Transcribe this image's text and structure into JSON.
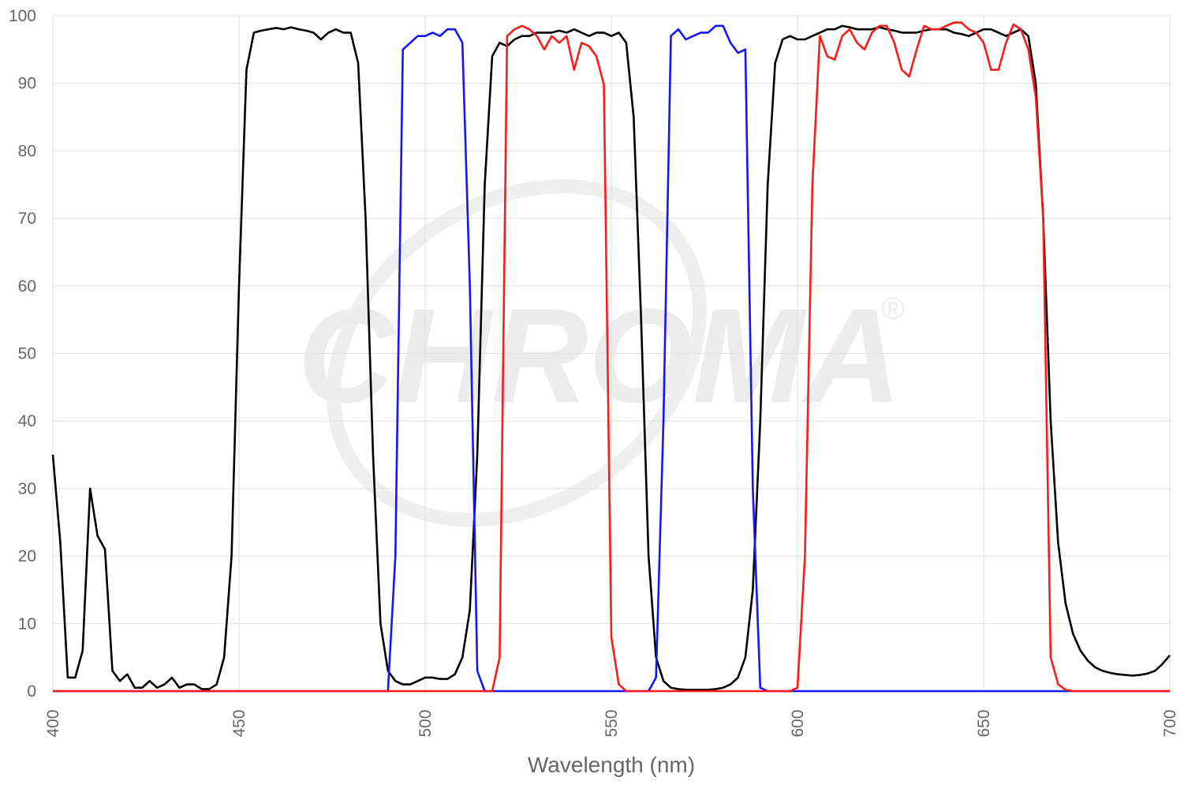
{
  "chart_data": {
    "type": "line",
    "x_label": "Wavelength (nm)",
    "watermark": "CHROMA",
    "watermark_mark": "®",
    "xlim": [
      400,
      700
    ],
    "xticks": [
      400,
      450,
      500,
      550,
      600,
      650,
      700
    ],
    "ylim": [
      0,
      100
    ],
    "yticks": [
      0,
      10,
      20,
      30,
      40,
      50,
      60,
      70,
      80,
      90,
      100
    ],
    "grid": true,
    "x": [
      400,
      402,
      404,
      406,
      408,
      410,
      412,
      414,
      416,
      418,
      420,
      422,
      424,
      426,
      428,
      430,
      432,
      434,
      436,
      438,
      440,
      442,
      444,
      446,
      448,
      450,
      452,
      454,
      456,
      458,
      460,
      462,
      464,
      466,
      468,
      470,
      472,
      474,
      476,
      478,
      480,
      482,
      484,
      486,
      488,
      490,
      492,
      494,
      496,
      498,
      500,
      502,
      504,
      506,
      508,
      510,
      512,
      514,
      516,
      518,
      520,
      522,
      524,
      526,
      528,
      530,
      532,
      534,
      536,
      538,
      540,
      542,
      544,
      546,
      548,
      550,
      552,
      554,
      556,
      558,
      560,
      562,
      564,
      566,
      568,
      570,
      572,
      574,
      576,
      578,
      580,
      582,
      584,
      586,
      588,
      590,
      592,
      594,
      596,
      598,
      600,
      602,
      604,
      606,
      608,
      610,
      612,
      614,
      616,
      618,
      620,
      622,
      624,
      626,
      628,
      630,
      632,
      634,
      636,
      638,
      640,
      642,
      644,
      646,
      648,
      650,
      652,
      654,
      656,
      658,
      660,
      662,
      664,
      666,
      668,
      670,
      672,
      674,
      676,
      678,
      680,
      682,
      684,
      686,
      688,
      690,
      692,
      694,
      696,
      698,
      700
    ],
    "series": [
      {
        "color": "#000000",
        "values": [
          35,
          22,
          2,
          2,
          6,
          30,
          23,
          21,
          3,
          1.5,
          2.5,
          0.5,
          0.5,
          1.5,
          0.5,
          1,
          2,
          0.5,
          1,
          1,
          0.3,
          0.3,
          1,
          5,
          20,
          60,
          92,
          97.5,
          97.8,
          98,
          98.2,
          98,
          98.3,
          98,
          97.8,
          97.5,
          96.5,
          97.5,
          98,
          97.5,
          97.5,
          93,
          70,
          35,
          10,
          3,
          1.5,
          1,
          1,
          1.5,
          2,
          2,
          1.8,
          1.8,
          2.5,
          5,
          12,
          35,
          75,
          94,
          96,
          95.5,
          96.5,
          97,
          97,
          97.5,
          97.5,
          97.5,
          97.8,
          97.5,
          98,
          97.5,
          97,
          97.5,
          97.5,
          97,
          97.5,
          96,
          85,
          55,
          20,
          5,
          1.5,
          0.5,
          0.3,
          0.2,
          0.2,
          0.2,
          0.2,
          0.3,
          0.5,
          1,
          2,
          5,
          15,
          40,
          75,
          93,
          96.5,
          97,
          96.5,
          96.5,
          97,
          97.5,
          98,
          98,
          98.5,
          98.3,
          98,
          98,
          98,
          98.3,
          98,
          97.8,
          97.5,
          97.5,
          97.5,
          97.8,
          98,
          98,
          98,
          97.5,
          97.3,
          97,
          97.5,
          98,
          98,
          97.5,
          97,
          97.5,
          98,
          97,
          90,
          70,
          40,
          22,
          13,
          8.5,
          6,
          4.5,
          3.5,
          3,
          2.7,
          2.5,
          2.4,
          2.3,
          2.4,
          2.6,
          3,
          4,
          5.3
        ]
      },
      {
        "color": "#1414ff",
        "values": [
          0,
          0,
          0,
          0,
          0,
          0,
          0,
          0,
          0,
          0,
          0,
          0,
          0,
          0,
          0,
          0,
          0,
          0,
          0,
          0,
          0,
          0,
          0,
          0,
          0,
          0,
          0,
          0,
          0,
          0,
          0,
          0,
          0,
          0,
          0,
          0,
          0,
          0,
          0,
          0,
          0,
          0,
          0,
          0,
          0,
          0,
          20,
          95,
          96,
          97,
          97,
          97.5,
          97,
          98,
          98,
          96,
          60,
          3,
          0,
          0,
          0,
          0,
          0,
          0,
          0,
          0,
          0,
          0,
          0,
          0,
          0,
          0,
          0,
          0,
          0,
          0,
          0,
          0,
          0,
          0,
          0,
          2,
          40,
          97,
          98,
          96.5,
          97,
          97.5,
          97.5,
          98.5,
          98.5,
          96,
          94.5,
          95,
          30,
          0.5,
          0,
          0,
          0,
          0,
          0,
          0,
          0,
          0,
          0,
          0,
          0,
          0,
          0,
          0,
          0,
          0,
          0,
          0,
          0,
          0,
          0,
          0,
          0,
          0,
          0,
          0,
          0,
          0,
          0,
          0,
          0,
          0,
          0,
          0,
          0,
          0,
          0,
          0,
          0,
          0,
          0,
          0,
          0,
          0,
          0,
          0,
          0,
          0,
          0,
          0,
          0,
          0,
          0,
          0,
          0
        ]
      },
      {
        "color": "#ff1a1a",
        "values": [
          0,
          0,
          0,
          0,
          0,
          0,
          0,
          0,
          0,
          0,
          0,
          0,
          0,
          0,
          0,
          0,
          0,
          0,
          0,
          0,
          0,
          0,
          0,
          0,
          0,
          0,
          0,
          0,
          0,
          0,
          0,
          0,
          0,
          0,
          0,
          0,
          0,
          0,
          0,
          0,
          0,
          0,
          0,
          0,
          0,
          0,
          0,
          0,
          0,
          0,
          0,
          0,
          0,
          0,
          0,
          0,
          0,
          0,
          0,
          0,
          5,
          97,
          98,
          98.5,
          98,
          97,
          95,
          97,
          96,
          97,
          92,
          96,
          95.5,
          94,
          89.8,
          8,
          1,
          0,
          0,
          0,
          0,
          0,
          0,
          0,
          0,
          0,
          0,
          0,
          0,
          0,
          0,
          0,
          0,
          0,
          0,
          0,
          0,
          0,
          0,
          0,
          0.5,
          20,
          75,
          97,
          94,
          93.5,
          97,
          98,
          96,
          95,
          97.5,
          98.5,
          98.5,
          96,
          92,
          91,
          95,
          98.5,
          98,
          98,
          98.5,
          99,
          99,
          98,
          97.5,
          96,
          92,
          92,
          96,
          98.7,
          98,
          95,
          88,
          70,
          5,
          1,
          0.2,
          0,
          0,
          0,
          0,
          0,
          0,
          0,
          0,
          0,
          0,
          0,
          0,
          0,
          0
        ]
      }
    ]
  }
}
